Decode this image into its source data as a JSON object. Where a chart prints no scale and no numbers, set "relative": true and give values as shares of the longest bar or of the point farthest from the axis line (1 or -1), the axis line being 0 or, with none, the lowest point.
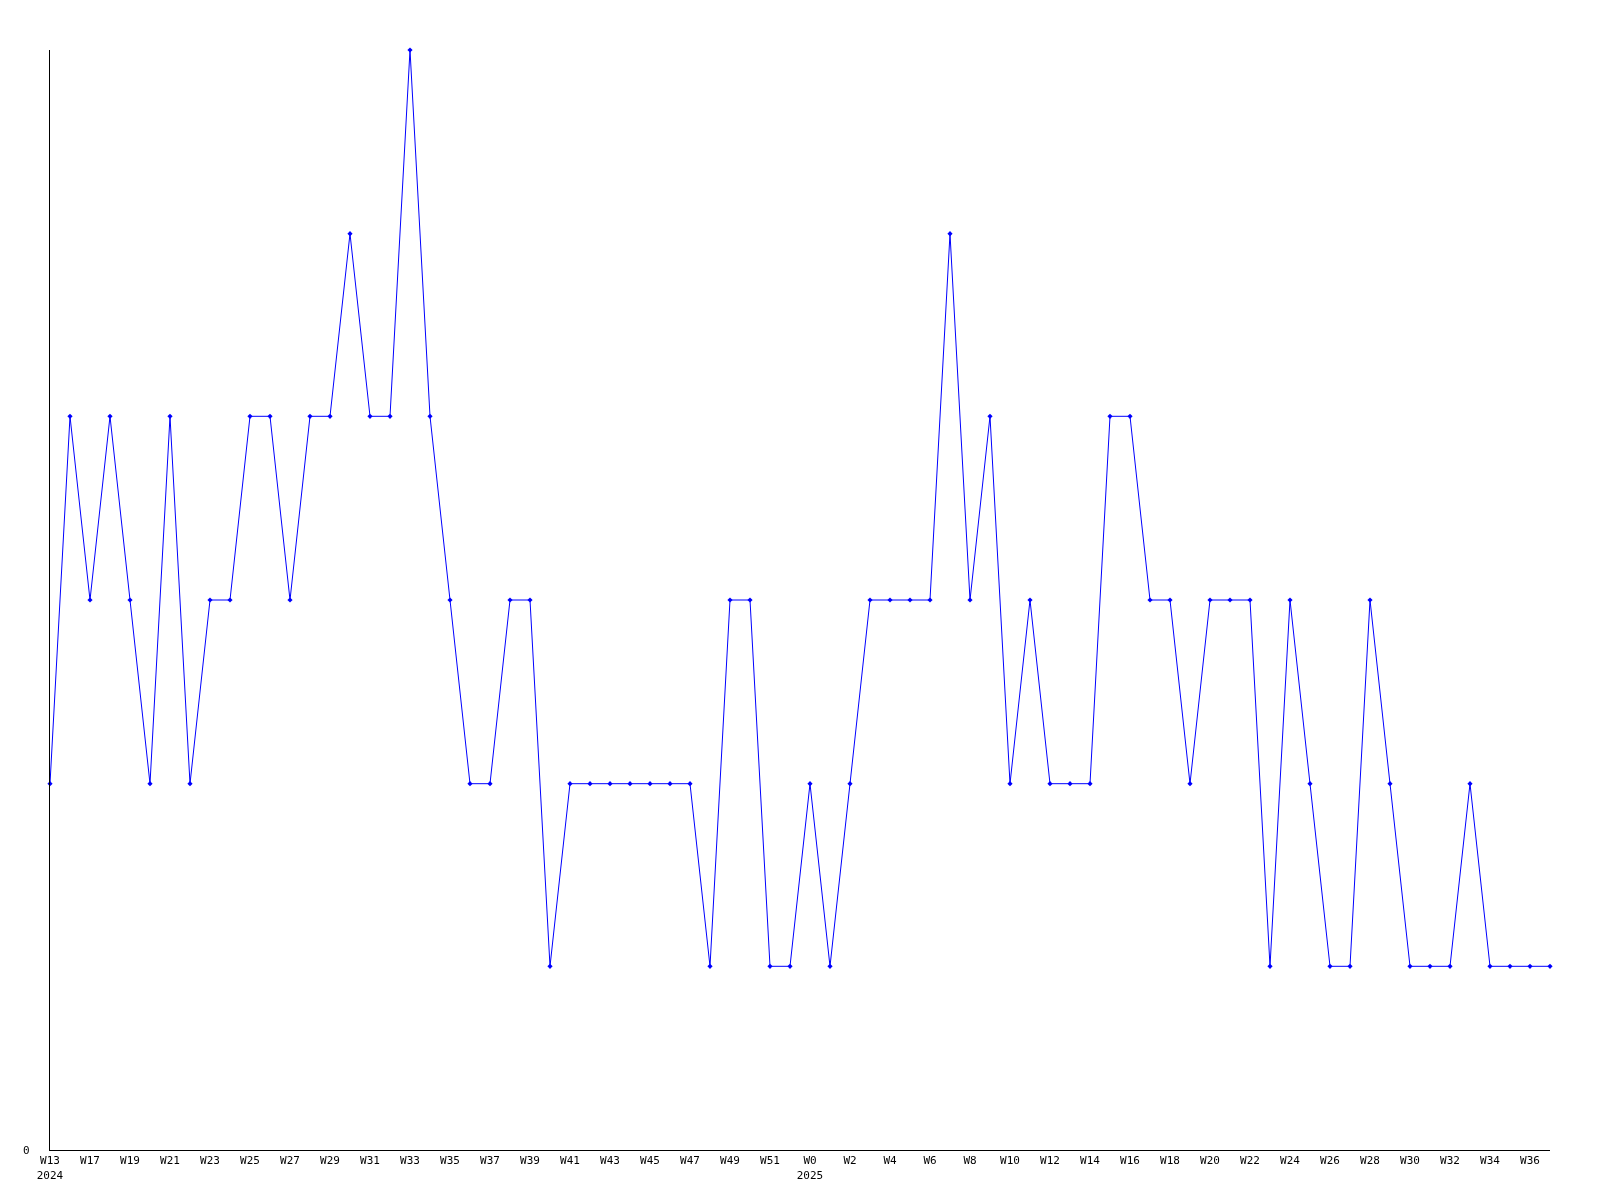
{
  "chart_data": {
    "type": "line",
    "relative": true,
    "marker": "diamond",
    "categories": [
      "W13\n2024",
      null,
      "W17",
      null,
      "W19",
      null,
      "W21",
      null,
      "W23",
      null,
      "W25",
      null,
      "W27",
      null,
      "W29",
      null,
      "W31",
      null,
      "W33",
      null,
      "W35",
      null,
      "W37",
      null,
      "W39",
      null,
      "W41",
      null,
      "W43",
      null,
      "W45",
      null,
      "W47",
      null,
      "W49",
      null,
      "W51",
      null,
      "W0\n2025",
      null,
      "W2",
      null,
      "W4",
      null,
      "W6",
      null,
      "W8",
      null,
      "W10",
      null,
      "W12",
      null,
      "W14",
      null,
      "W16",
      null,
      "W18",
      null,
      "W20",
      null,
      "W22",
      null,
      "W24",
      null,
      "W26",
      null,
      "W28",
      null,
      "W30",
      null,
      "W32",
      null,
      "W34",
      null,
      "W36",
      null
    ],
    "series": [
      {
        "color": "#0000ff",
        "values": [
          0.333,
          0.667,
          0.5,
          0.667,
          0.5,
          0.333,
          0.667,
          0.333,
          0.5,
          0.5,
          0.667,
          0.667,
          0.5,
          0.667,
          0.667,
          0.833,
          0.667,
          0.667,
          1,
          0.667,
          0.5,
          0.333,
          0.333,
          0.5,
          0.5,
          0.167,
          0.333,
          0.333,
          0.333,
          0.333,
          0.333,
          0.333,
          0.333,
          0.167,
          0.5,
          0.5,
          0.167,
          0.167,
          0.333,
          0.167,
          0.333,
          0.5,
          0.5,
          0.5,
          0.5,
          0.833,
          0.5,
          0.667,
          0.333,
          0.5,
          0.333,
          0.333,
          0.333,
          0.667,
          0.667,
          0.5,
          0.5,
          0.333,
          0.5,
          0.5,
          0.5,
          0.167,
          0.5,
          0.333,
          0.167,
          0.167,
          0.5,
          0.333,
          0.167,
          0.167,
          0.167,
          0.333,
          0.167,
          0.167,
          0.167,
          0.167
        ]
      }
    ],
    "annotations": [
      "0"
    ]
  }
}
